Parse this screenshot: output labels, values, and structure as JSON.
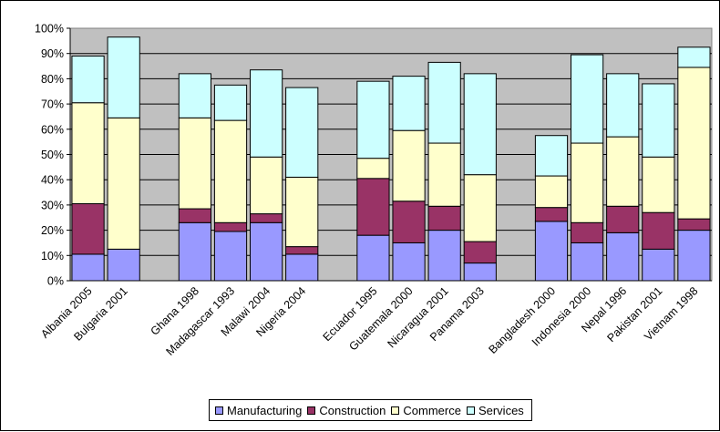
{
  "chart_data": {
    "type": "bar",
    "stacked": true,
    "categories": [
      "Albania 2005",
      "Bulgaria 2001",
      "",
      "Ghana 1998",
      "Madagascar 1993",
      "Malawi 2004",
      "Nigeria 2004",
      "",
      "Ecuador 1995",
      "Guatemala 2000",
      "Nicaragua 2001",
      "Panama 2003",
      "",
      "Bangladesh 2000",
      "Indonesia 2000",
      "Nepal 1996",
      "Pakistan 2001",
      "Vietnam 1998"
    ],
    "series": [
      {
        "name": "Manufacturing",
        "color": "#9999FF",
        "values": [
          10.5,
          12.5,
          null,
          23,
          19.5,
          23,
          10.5,
          null,
          18,
          15,
          20,
          7,
          null,
          23.5,
          15,
          19,
          12.5,
          20
        ]
      },
      {
        "name": "Construction",
        "color": "#993366",
        "values": [
          20,
          0,
          null,
          5.5,
          3.5,
          3.5,
          3,
          null,
          22.5,
          16.5,
          9.5,
          8.5,
          null,
          5.5,
          8,
          10.5,
          14.5,
          4.5
        ]
      },
      {
        "name": "Commerce",
        "color": "#FFFFCC",
        "values": [
          40,
          52,
          null,
          36,
          40.5,
          22.5,
          27.5,
          null,
          8,
          28,
          25,
          26.5,
          null,
          12.5,
          31.5,
          27.5,
          22,
          60
        ]
      },
      {
        "name": "Services",
        "color": "#CCFFFF",
        "values": [
          18.5,
          32,
          null,
          17.5,
          14,
          34.5,
          35.5,
          null,
          30.5,
          21.5,
          32,
          40,
          null,
          16,
          35,
          25,
          29,
          8
        ]
      }
    ],
    "ylim": [
      0,
      100
    ],
    "yticks": [
      "0%",
      "10%",
      "20%",
      "30%",
      "40%",
      "50%",
      "60%",
      "70%",
      "80%",
      "90%",
      "100%"
    ],
    "grid": true,
    "legend": "bottom",
    "title": "",
    "xlabel": "",
    "ylabel": "",
    "plot_background": "#C0C0C0"
  }
}
